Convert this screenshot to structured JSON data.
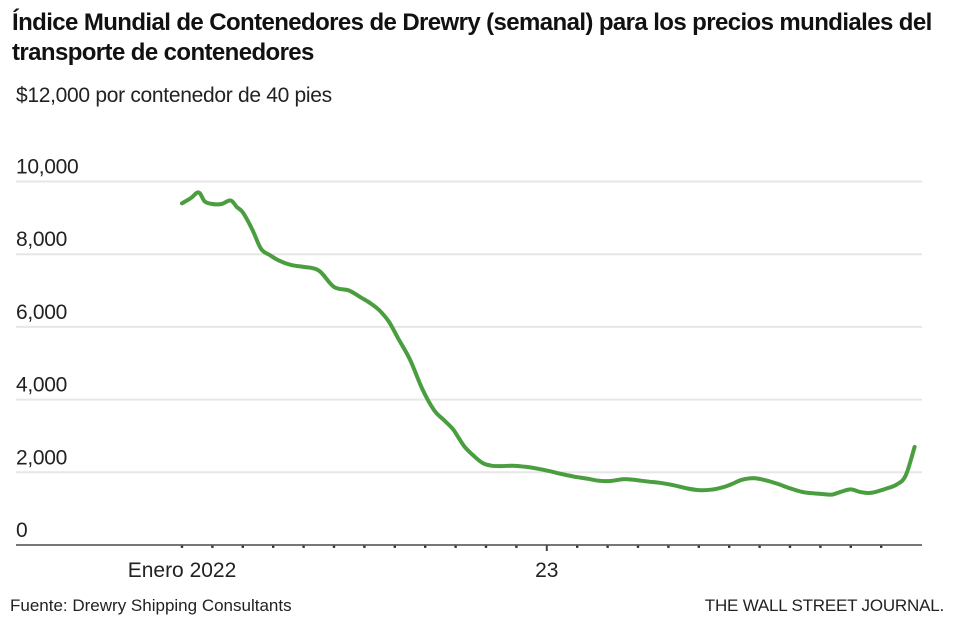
{
  "header": {
    "title": "Índice Mundial de Contenedores de Drewry (semanal) para los precios mundiales del transporte de contenedores",
    "unit_label": "$12,000 por contenedor de 40 pies"
  },
  "footer": {
    "source": "Fuente: Drewry Shipping Consultants",
    "credit": "THE WALL STREET JOURNAL."
  },
  "colors": {
    "line": "#4a9e3f",
    "grid": "#e6e6e6",
    "axis": "#777777",
    "text": "#222222"
  },
  "chart_data": {
    "type": "line",
    "title": "Índice Mundial de Contenedores de Drewry (semanal) para los precios mundiales del transporte de contenedores",
    "ylabel": "$ por contenedor de 40 pies",
    "xlabel": "",
    "ylim": [
      0,
      12000
    ],
    "yticks": [
      0,
      2000,
      4000,
      6000,
      8000,
      10000
    ],
    "ytick_labels": [
      "0",
      "2,000",
      "4,000",
      "6,000",
      "8,000",
      "10,000"
    ],
    "top_label": "$12,000 por contenedor de 40 pies",
    "x_unit": "months since January 2022",
    "xlim": [
      -2.5,
      24.5
    ],
    "xticks_minor": [
      0,
      1,
      2,
      3,
      4,
      5,
      6,
      7,
      8,
      9,
      10,
      11,
      12,
      13,
      14,
      15,
      16,
      17,
      18,
      19,
      20,
      21,
      22,
      23
    ],
    "xtick_labels": [
      {
        "x": 0,
        "label": "Enero 2022"
      },
      {
        "x": 12,
        "label": "23"
      }
    ],
    "grid": true,
    "legend": "none",
    "series": [
      {
        "name": "Índice Mundial de Contenedores de Drewry",
        "x": [
          0.0,
          0.3,
          0.55,
          0.75,
          1.0,
          1.3,
          1.6,
          1.8,
          2.0,
          2.3,
          2.6,
          2.9,
          3.2,
          3.6,
          4.0,
          4.5,
          5.0,
          5.5,
          5.9,
          6.2,
          6.5,
          6.8,
          7.1,
          7.5,
          7.9,
          8.3,
          8.6,
          8.9,
          9.1,
          9.3,
          9.6,
          9.9,
          10.2,
          10.5,
          10.9,
          11.3,
          11.7,
          12.1,
          12.5,
          12.9,
          13.3,
          13.7,
          14.1,
          14.5,
          14.9,
          15.1,
          15.4,
          15.8,
          16.2,
          16.6,
          17.0,
          17.4,
          17.8,
          18.1,
          18.4,
          18.8,
          19.2,
          19.6,
          20.0,
          20.4,
          20.8,
          21.1,
          21.4,
          21.7,
          22.0,
          22.3,
          22.6,
          22.9,
          23.2,
          23.5,
          23.8,
          24.1
        ],
        "values": [
          9400,
          9550,
          9700,
          9450,
          9380,
          9380,
          9480,
          9300,
          9150,
          8700,
          8150,
          7970,
          7820,
          7700,
          7650,
          7550,
          7100,
          7000,
          6800,
          6650,
          6450,
          6150,
          5700,
          5100,
          4300,
          3700,
          3450,
          3200,
          2950,
          2700,
          2450,
          2250,
          2180,
          2170,
          2180,
          2150,
          2100,
          2030,
          1950,
          1880,
          1830,
          1770,
          1760,
          1810,
          1790,
          1770,
          1740,
          1700,
          1640,
          1560,
          1510,
          1520,
          1590,
          1680,
          1790,
          1840,
          1780,
          1680,
          1560,
          1460,
          1420,
          1400,
          1390,
          1470,
          1530,
          1460,
          1430,
          1480,
          1560,
          1660,
          1900,
          2700
        ]
      }
    ]
  }
}
